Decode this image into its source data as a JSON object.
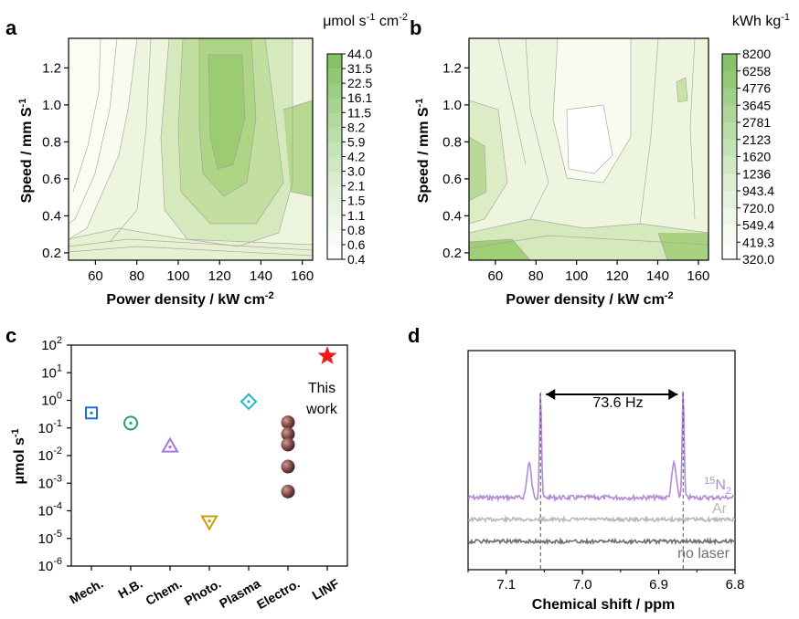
{
  "chart_data": [
    {
      "panel": "a",
      "type": "heatmap",
      "xlabel": "Power density / kW cm",
      "xlabel_sup": "-2",
      "ylabel": "Speed / mm S",
      "ylabel_sup": "-1",
      "xlim": [
        47,
        165
      ],
      "ylim": [
        0.16,
        1.36
      ],
      "xticks": [
        60,
        80,
        100,
        120,
        140,
        160
      ],
      "yticks": [
        0.2,
        0.4,
        0.6,
        0.8,
        1.0,
        1.2
      ],
      "ytick_labels": [
        "0.2",
        "0.4",
        "0.6",
        "0.8",
        "1.0",
        "1.2"
      ],
      "colorbar_unit": "μmol s",
      "colorbar_unit_sup1": "-1",
      "colorbar_unit_mid": " cm",
      "colorbar_unit_sup2": "-2",
      "colorbar_levels": [
        "44.0",
        "31.5",
        "22.5",
        "16.1",
        "11.5",
        "8.2",
        "5.9",
        "4.2",
        "3.0",
        "2.1",
        "1.5",
        "1.1",
        "0.8",
        "0.6",
        "0.4"
      ],
      "colors": {
        "low": "#ffffff",
        "high": "#7fbf5f"
      }
    },
    {
      "panel": "b",
      "type": "heatmap",
      "xlabel": "Power density / kW cm",
      "xlabel_sup": "-2",
      "ylabel": "Speed / mm S",
      "ylabel_sup": "-1",
      "xlim": [
        47,
        165
      ],
      "ylim": [
        0.16,
        1.36
      ],
      "xticks": [
        60,
        80,
        100,
        120,
        140,
        160
      ],
      "yticks": [
        0.2,
        0.4,
        0.6,
        0.8,
        1.0,
        1.2
      ],
      "ytick_labels": [
        "0.2",
        "0.4",
        "0.6",
        "0.8",
        "1.0",
        "1.2"
      ],
      "colorbar_unit": "kWh kg",
      "colorbar_unit_sup1": "-1",
      "colorbar_levels": [
        "8200",
        "6258",
        "4776",
        "3645",
        "2781",
        "2123",
        "1620",
        "1236",
        "943.4",
        "720.0",
        "549.4",
        "419.3",
        "320.0"
      ],
      "colors": {
        "low": "#ffffff",
        "high": "#7fbf5f"
      }
    },
    {
      "panel": "c",
      "type": "scatter",
      "ylabel": "μmol s",
      "ylabel_sup": "-1",
      "yscale": "log",
      "ylim_exp": [
        -6,
        2
      ],
      "categories": [
        "Mech.",
        "H.B.",
        "Chem.",
        "Photo.",
        "Plasma",
        "Electro.",
        "LINF"
      ],
      "series": [
        {
          "category": "Mech.",
          "marker": "square-dot",
          "color": "#1f6fd6",
          "values": [
            0.35
          ]
        },
        {
          "category": "H.B.",
          "marker": "circle-dot",
          "color": "#2aa36b",
          "values": [
            0.15
          ]
        },
        {
          "category": "Chem.",
          "marker": "triangle-dot",
          "color": "#a974d9",
          "values": [
            0.022
          ]
        },
        {
          "category": "Photo.",
          "marker": "down-triangle-dot",
          "color": "#c9a000",
          "values": [
            4e-05
          ]
        },
        {
          "category": "Plasma",
          "marker": "diamond-dot",
          "color": "#26b8c4",
          "values": [
            0.9
          ]
        },
        {
          "category": "Electro.",
          "marker": "filled-sphere",
          "color": "#8a4f4a",
          "values": [
            0.16,
            0.06,
            0.025,
            0.004,
            0.0005
          ]
        },
        {
          "category": "LINF",
          "marker": "star",
          "color": "#ee1c1c",
          "values": [
            40
          ]
        }
      ],
      "annotation": [
        "This",
        "work"
      ]
    },
    {
      "panel": "d",
      "type": "line",
      "xlabel": "Chemical shift / ppm",
      "xlim": [
        7.15,
        6.8
      ],
      "xticks": [
        "7.1",
        "7.0",
        "6.9",
        "6.8"
      ],
      "annotation": "73.6 Hz",
      "peaks_ppm": [
        7.055,
        6.868
      ],
      "side_peaks_ppm": [
        7.07,
        6.88
      ],
      "series": [
        {
          "name": "N",
          "name_prefix_sup": "15",
          "name_sub": "2",
          "color": "#b28bd4"
        },
        {
          "name": "Ar",
          "color": "#b9b9b9"
        },
        {
          "name": "no laser",
          "color": "#6f6f6f"
        }
      ]
    }
  ],
  "panel_labels": [
    "a",
    "b",
    "c",
    "d"
  ]
}
